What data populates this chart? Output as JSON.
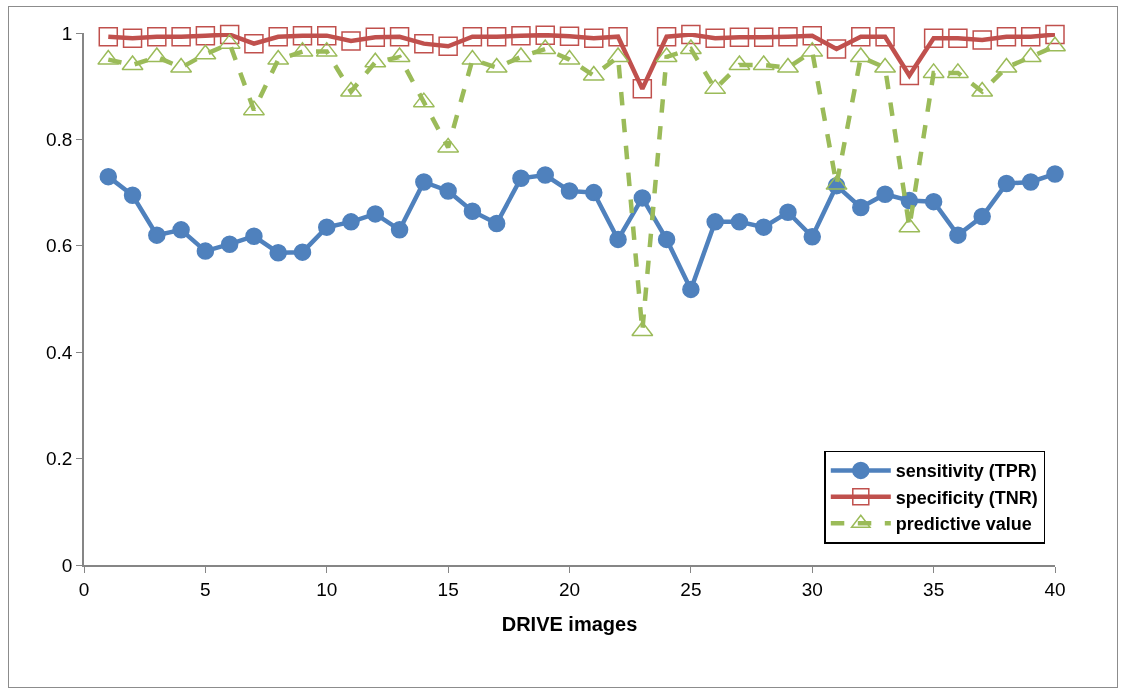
{
  "chart_data": {
    "type": "line",
    "xlabel": "DRIVE images",
    "x": [
      1,
      2,
      3,
      4,
      5,
      6,
      7,
      8,
      9,
      10,
      11,
      12,
      13,
      14,
      15,
      16,
      17,
      18,
      19,
      20,
      21,
      22,
      23,
      24,
      25,
      26,
      27,
      28,
      29,
      30,
      31,
      32,
      33,
      34,
      35,
      36,
      37,
      38,
      39,
      40
    ],
    "series": [
      {
        "name": "sensitivity (TPR)",
        "color": "#4f81bd",
        "marker": "circle",
        "line_style": "solid",
        "values": [
          0.73,
          0.695,
          0.62,
          0.63,
          0.59,
          0.603,
          0.618,
          0.587,
          0.588,
          0.635,
          0.645,
          0.66,
          0.63,
          0.72,
          0.703,
          0.665,
          0.642,
          0.727,
          0.733,
          0.703,
          0.7,
          0.612,
          0.69,
          0.612,
          0.518,
          0.645,
          0.645,
          0.635,
          0.663,
          0.617,
          0.713,
          0.672,
          0.697,
          0.685,
          0.683,
          0.62,
          0.655,
          0.717,
          0.72,
          0.735
        ]
      },
      {
        "name": "specificity (TNR)",
        "color": "#c0504d",
        "marker": "square",
        "line_style": "solid",
        "values": [
          0.993,
          0.99,
          0.993,
          0.993,
          0.995,
          0.997,
          0.98,
          0.993,
          0.995,
          0.995,
          0.985,
          0.992,
          0.993,
          0.98,
          0.975,
          0.993,
          0.993,
          0.995,
          0.996,
          0.994,
          0.99,
          0.993,
          0.895,
          0.993,
          0.997,
          0.99,
          0.992,
          0.992,
          0.993,
          0.995,
          0.97,
          0.993,
          0.993,
          0.92,
          0.99,
          0.99,
          0.987,
          0.993,
          0.993,
          0.997
        ]
      },
      {
        "name": "predictive value",
        "color": "#9bbb59",
        "marker": "triangle",
        "line_style": "dashed",
        "values": [
          0.95,
          0.94,
          0.955,
          0.935,
          0.96,
          0.98,
          0.855,
          0.95,
          0.965,
          0.965,
          0.89,
          0.945,
          0.955,
          0.87,
          0.785,
          0.95,
          0.935,
          0.955,
          0.97,
          0.95,
          0.92,
          0.955,
          0.44,
          0.955,
          0.97,
          0.895,
          0.94,
          0.94,
          0.935,
          0.965,
          0.715,
          0.955,
          0.935,
          0.635,
          0.925,
          0.925,
          0.89,
          0.935,
          0.955,
          0.975
        ]
      }
    ],
    "xlim": [
      0,
      40
    ],
    "xticks": [
      0,
      5,
      10,
      15,
      20,
      25,
      30,
      35,
      40
    ],
    "ylim": [
      0,
      1
    ],
    "yticks": [
      0,
      0.2,
      0.4,
      0.6,
      0.8,
      1
    ],
    "grid": false,
    "legend": "bottom right"
  }
}
